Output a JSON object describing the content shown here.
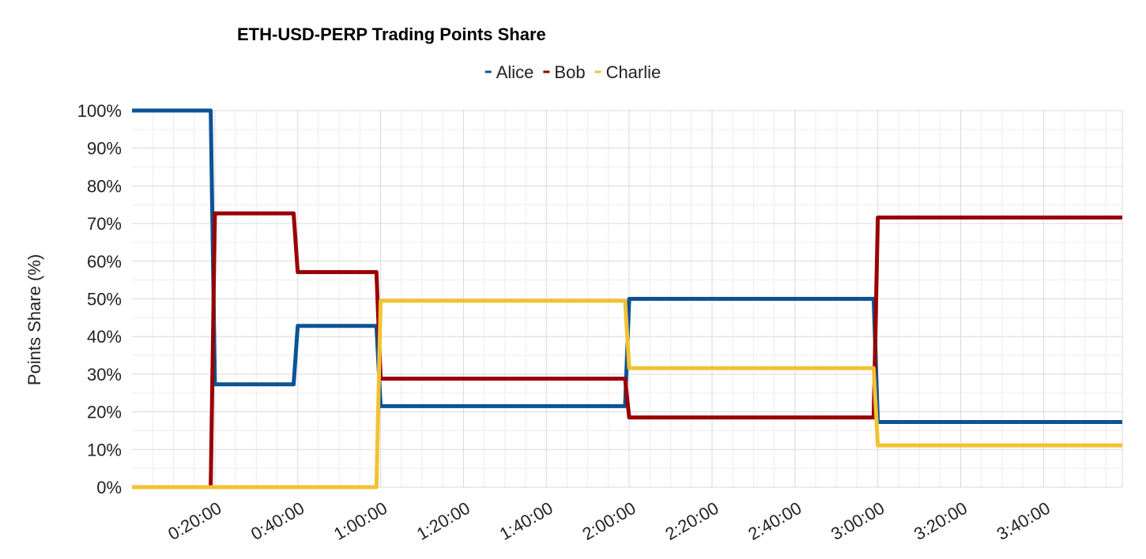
{
  "chart_data": {
    "type": "line",
    "title": "ETH-USD-PERP Trading Points Share",
    "xlabel": "",
    "ylabel": "Points Share (%)",
    "ylim": [
      0,
      100
    ],
    "yticks": [
      0,
      10,
      20,
      30,
      40,
      50,
      60,
      70,
      80,
      90,
      100
    ],
    "ytick_labels": [
      "0%",
      "10%",
      "20%",
      "30%",
      "40%",
      "50%",
      "60%",
      "70%",
      "80%",
      "90%",
      "100%"
    ],
    "xlim": [
      0,
      239
    ],
    "xticks_minutes": [
      20,
      40,
      60,
      80,
      100,
      120,
      140,
      160,
      180,
      200,
      220
    ],
    "xtick_labels": [
      "0:20:00",
      "0:40:00",
      "1:00:00",
      "1:20:00",
      "1:40:00",
      "2:00:00",
      "2:20:00",
      "2:40:00",
      "3:00:00",
      "3:20:00",
      "3:40:00"
    ],
    "grid": true,
    "legend_position": "top-center",
    "series": [
      {
        "name": "Alice",
        "color": "#0b5394",
        "points": [
          {
            "x": 0,
            "y": 100
          },
          {
            "x": 19,
            "y": 100
          },
          {
            "x": 20,
            "y": 27.3
          },
          {
            "x": 39,
            "y": 27.3
          },
          {
            "x": 40,
            "y": 42.8
          },
          {
            "x": 59,
            "y": 42.8
          },
          {
            "x": 60,
            "y": 21.5
          },
          {
            "x": 119,
            "y": 21.5
          },
          {
            "x": 120,
            "y": 50
          },
          {
            "x": 179,
            "y": 50
          },
          {
            "x": 180,
            "y": 17.3
          },
          {
            "x": 239,
            "y": 17.3
          }
        ]
      },
      {
        "name": "Bob",
        "color": "#990000",
        "points": [
          {
            "x": 0,
            "y": null
          },
          {
            "x": 19,
            "y": 0
          },
          {
            "x": 20,
            "y": 72.7
          },
          {
            "x": 39,
            "y": 72.7
          },
          {
            "x": 40,
            "y": 57.1
          },
          {
            "x": 59,
            "y": 57.1
          },
          {
            "x": 60,
            "y": 28.8
          },
          {
            "x": 119,
            "y": 28.8
          },
          {
            "x": 120,
            "y": 18.5
          },
          {
            "x": 179,
            "y": 18.5
          },
          {
            "x": 180,
            "y": 71.6
          },
          {
            "x": 239,
            "y": 71.6
          }
        ]
      },
      {
        "name": "Charlie",
        "color": "#f1c232",
        "points": [
          {
            "x": 0,
            "y": 0
          },
          {
            "x": 59,
            "y": 0
          },
          {
            "x": 60,
            "y": 49.5
          },
          {
            "x": 119,
            "y": 49.5
          },
          {
            "x": 120,
            "y": 31.6
          },
          {
            "x": 179,
            "y": 31.6
          },
          {
            "x": 180,
            "y": 11.1
          },
          {
            "x": 239,
            "y": 11.1
          }
        ]
      }
    ]
  }
}
